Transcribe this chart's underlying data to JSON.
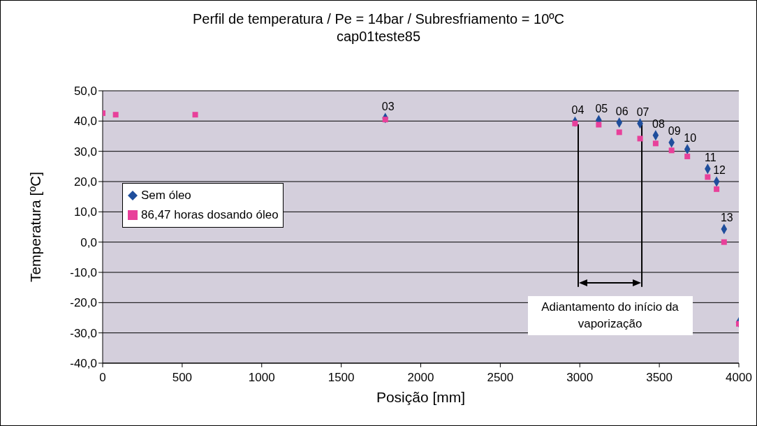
{
  "chart_data": {
    "type": "scatter",
    "title": "Perfil de temperatura / Pe = 14bar / Subresfriamento = 10ºC",
    "subtitle": "cap01teste85",
    "xlabel": "Posição [mm]",
    "ylabel": "Temperatura [ºC]",
    "x": [
      0,
      82,
      582,
      1777,
      2970,
      3119,
      3248,
      3379,
      3477,
      3577,
      3676,
      3804,
      3860,
      3907,
      4000
    ],
    "series": [
      {
        "name": "Sem óleo",
        "color": "#1f4e9c",
        "marker": "diamond",
        "values": [
          null,
          null,
          null,
          41.0,
          39.8,
          40.3,
          39.5,
          39.2,
          35.3,
          32.9,
          30.7,
          24.2,
          20.0,
          4.3,
          -26.5
        ]
      },
      {
        "name": "86,47 horas dosando óleo",
        "color": "#e8409a",
        "marker": "square",
        "values": [
          42.6,
          42.1,
          42.1,
          40.5,
          39.2,
          38.8,
          36.3,
          34.2,
          32.6,
          30.3,
          28.3,
          21.5,
          17.5,
          0.0,
          -27.0
        ]
      }
    ],
    "xlim": [
      0,
      4000
    ],
    "xticks": [
      0,
      500,
      1000,
      1500,
      2000,
      2500,
      3000,
      3500,
      4000
    ],
    "ylim": [
      -40,
      50
    ],
    "yticks": [
      {
        "value": -40,
        "label": "-40,0"
      },
      {
        "value": -30,
        "label": "-30,0"
      },
      {
        "value": -20,
        "label": "-20,0"
      },
      {
        "value": -10,
        "label": "-10,0"
      },
      {
        "value": 0,
        "label": "0,0"
      },
      {
        "value": 10,
        "label": "10,0"
      },
      {
        "value": 20,
        "label": "20,0"
      },
      {
        "value": 30,
        "label": "30,0"
      },
      {
        "value": 40,
        "label": "40,0"
      },
      {
        "value": 50,
        "label": "50,0"
      }
    ],
    "grid": "y",
    "legend": "left",
    "ref_lines": [
      {
        "axis": "x",
        "value": 2990,
        "color": "#000000"
      },
      {
        "axis": "x",
        "value": 3390,
        "color": "#000000"
      }
    ],
    "annotations": [
      "Adiantamento do início da vaporização",
      {
        "text": "03",
        "x": 1777,
        "y": 41.0
      },
      {
        "text": "04",
        "x": 2970,
        "y": 39.8
      },
      {
        "text": "05",
        "x": 3119,
        "y": 40.3
      },
      {
        "text": "06",
        "x": 3248,
        "y": 39.5
      },
      {
        "text": "07",
        "x": 3379,
        "y": 39.2
      },
      {
        "text": "08",
        "x": 3477,
        "y": 35.3
      },
      {
        "text": "09",
        "x": 3577,
        "y": 32.9
      },
      {
        "text": "10",
        "x": 3676,
        "y": 30.7
      },
      {
        "text": "11",
        "x": 3804,
        "y": 24.2
      },
      {
        "text": "12",
        "x": 3860,
        "y": 20.0
      },
      {
        "text": "13",
        "x": 3907,
        "y": 4.3
      }
    ]
  }
}
